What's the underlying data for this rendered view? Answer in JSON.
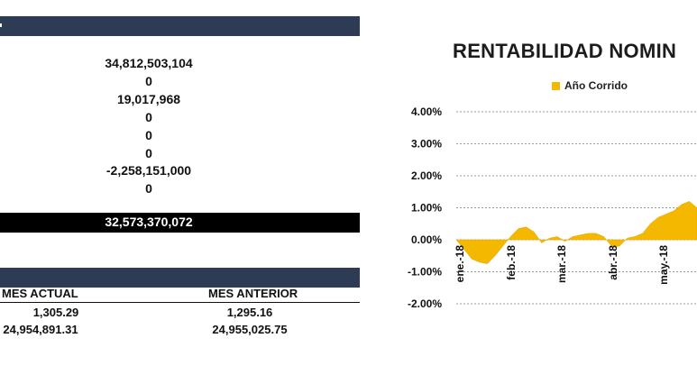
{
  "table": {
    "rows": [
      "34,812,503,104",
      "0",
      "19,017,968",
      "0",
      "0",
      "0",
      "-2,258,151,000",
      "0"
    ],
    "total": "32,573,370,072"
  },
  "unit_table": {
    "headers": [
      "MES ACTUAL",
      "MES ANTERIOR"
    ],
    "row1": [
      "1,305.29",
      "1,295.16"
    ],
    "row2": [
      "24,954,891.31",
      "24,955,025.75"
    ]
  },
  "chart": {
    "title": "RENTABILIDAD NOMIN",
    "legend": "Año Corrido"
  },
  "chart_data": {
    "type": "area",
    "title": "RENTABILIDAD NOMIN",
    "series": [
      {
        "name": "Año Corrido",
        "color": "#f5b800",
        "values": [
          0.0,
          -0.3,
          -0.6,
          -0.7,
          -0.75,
          -0.5,
          -0.2,
          0.1,
          0.35,
          0.4,
          0.25,
          -0.1,
          0.05,
          0.1,
          -0.05,
          0.1,
          0.15,
          0.2,
          0.2,
          0.1,
          -0.2,
          -0.2,
          0.05,
          0.1,
          0.2,
          0.5,
          0.7,
          0.8,
          0.9,
          1.1,
          1.2,
          1.0
        ]
      }
    ],
    "x_tick_labels": [
      "ene.-18",
      "feb.-18",
      "mar.-18",
      "abr.-18",
      "may.-18"
    ],
    "y_tick_labels": [
      "4.00%",
      "3.00%",
      "2.00%",
      "1.00%",
      "0.00%",
      "-1.00%",
      "-2.00%"
    ],
    "ylim": [
      -2,
      4
    ],
    "grid": "dashed horizontal"
  }
}
